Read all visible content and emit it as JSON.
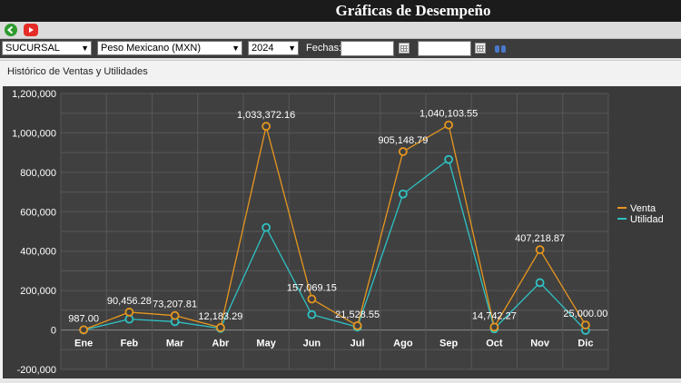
{
  "header": {
    "title": "Gráficas de Desempeño"
  },
  "toolbar": {
    "back_icon": "back-arrow-icon",
    "video_icon": "youtube-icon"
  },
  "filters": {
    "branch": "SUCURSAL",
    "currency": "Peso Mexicano (MXN)",
    "year": "2024",
    "dates_label": "Fechas:",
    "date_from": "",
    "date_to": ""
  },
  "panel": {
    "title": "Histórico de Ventas y Utilidades"
  },
  "chart_data": {
    "type": "line",
    "categories": [
      "Ene",
      "Feb",
      "Mar",
      "Abr",
      "May",
      "Jun",
      "Jul",
      "Ago",
      "Sep",
      "Oct",
      "Nov",
      "Dic"
    ],
    "y_ticks": [
      "1,200,000",
      "1,000,000",
      "800,000",
      "600,000",
      "400,000",
      "200,000",
      "0",
      "-200,000"
    ],
    "ylim": [
      -200000,
      1200000
    ],
    "legend_position": "right",
    "grid": true,
    "series": [
      {
        "name": "Venta",
        "color": "#e6961e",
        "values": [
          987.0,
          90456.28,
          73207.81,
          12183.29,
          1033372.16,
          157069.15,
          21528.55,
          905148.79,
          1040103.55,
          14742.27,
          407218.87,
          25000.0
        ],
        "labels": [
          "987.00",
          "90,456.28",
          "73,207.81",
          "12,183.29",
          "1,033,372.16",
          "157,069.15",
          "21,528.55",
          "905,148.79",
          "1,040,103.55",
          "14,742.27",
          "407,218.87",
          "25,000.00"
        ]
      },
      {
        "name": "Utilidad",
        "color": "#2fc2c4",
        "values": [
          0,
          55000,
          42000,
          8000,
          520000,
          78000,
          15000,
          690000,
          865000,
          6000,
          240000,
          -2000
        ]
      }
    ]
  }
}
